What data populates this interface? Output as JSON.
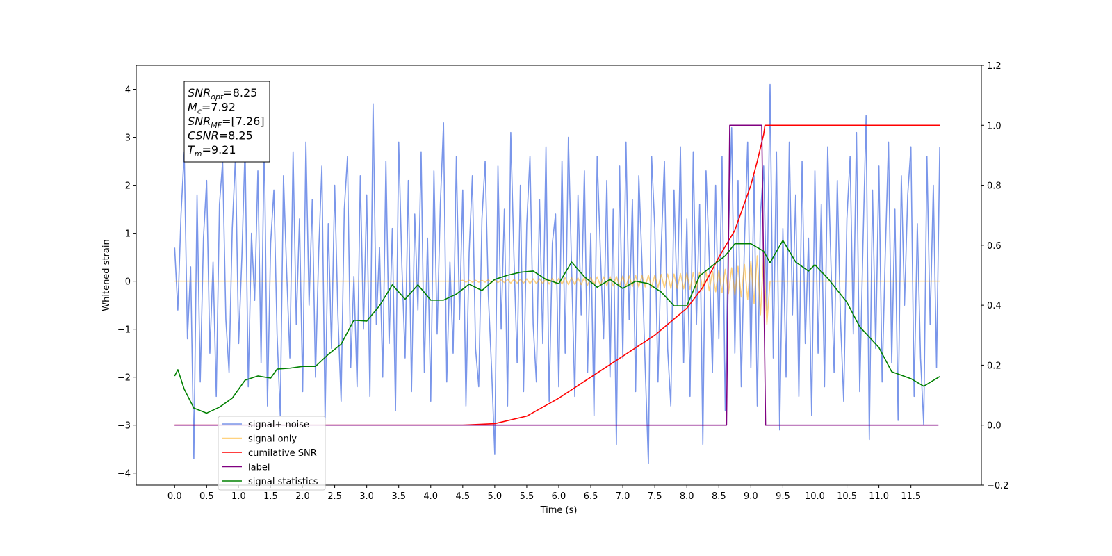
{
  "chart_data": {
    "type": "line",
    "xlabel": "Time (s)",
    "ylabel": "Whitened strain",
    "xlim": [
      -0.6,
      12.6
    ],
    "ylim": [
      -4.25,
      4.5
    ],
    "y2lim": [
      -0.2,
      1.2
    ],
    "xticks": [
      {
        "value": 0,
        "label": "0.0"
      },
      {
        "value": 0.5,
        "label": "0.5"
      },
      {
        "value": 1,
        "label": "1.0"
      },
      {
        "value": 1.5,
        "label": "1.5"
      },
      {
        "value": 2,
        "label": "2.0"
      },
      {
        "value": 2.5,
        "label": "2.5"
      },
      {
        "value": 3,
        "label": "3.0"
      },
      {
        "value": 3.5,
        "label": "3.5"
      },
      {
        "value": 4,
        "label": "4.0"
      },
      {
        "value": 4.5,
        "label": "4.5"
      },
      {
        "value": 5,
        "label": "5.0"
      },
      {
        "value": 5.5,
        "label": "5.5"
      },
      {
        "value": 6,
        "label": "6.0"
      },
      {
        "value": 6.5,
        "label": "6.5"
      },
      {
        "value": 7,
        "label": "7.0"
      },
      {
        "value": 7.5,
        "label": "7.5"
      },
      {
        "value": 8,
        "label": "8.0"
      },
      {
        "value": 8.5,
        "label": "8.5"
      },
      {
        "value": 9,
        "label": "9.0"
      },
      {
        "value": 9.5,
        "label": "9.5"
      },
      {
        "value": 10,
        "label": "10.0"
      },
      {
        "value": 10.5,
        "label": "10.5"
      },
      {
        "value": 11,
        "label": "11.0"
      },
      {
        "value": 11.5,
        "label": "11.5"
      }
    ],
    "yticks": [
      {
        "value": -4,
        "label": "−4"
      },
      {
        "value": -3,
        "label": "−3"
      },
      {
        "value": -2,
        "label": "−2"
      },
      {
        "value": -1,
        "label": "−1"
      },
      0,
      1,
      2,
      3,
      4
    ],
    "y2ticks": [
      {
        "value": -0.2,
        "label": "−0.2"
      },
      {
        "value": 0,
        "label": "0.0"
      },
      {
        "value": 0.2,
        "label": "0.2"
      },
      {
        "value": 0.4,
        "label": "0.4"
      },
      {
        "value": 0.6,
        "label": "0.6"
      },
      {
        "value": 0.8,
        "label": "0.8"
      },
      {
        "value": 1,
        "label": "1.0"
      },
      {
        "value": 1.2,
        "label": "1.2"
      }
    ],
    "annotation": [
      {
        "symbol": "SNR",
        "sub": "opt",
        "text": "=8.25"
      },
      {
        "symbol": "M",
        "sub": "c",
        "text": "=7.92"
      },
      {
        "symbol": "SNR",
        "sub": "MF",
        "text": "=[7.26]"
      },
      {
        "symbol": "CSNR",
        "text": "=8.25"
      },
      {
        "symbol": "T",
        "sub": "m",
        "text": "=9.21"
      }
    ],
    "x": [
      0,
      0.05,
      0.1,
      0.15,
      0.2,
      0.25,
      0.3,
      0.35,
      0.4,
      0.45,
      0.5,
      0.55,
      0.6,
      0.65,
      0.7,
      0.75,
      0.8,
      0.85,
      0.9,
      0.95,
      1,
      1.05,
      1.1,
      1.15,
      1.2,
      1.25,
      1.3,
      1.35,
      1.4,
      1.45,
      1.5,
      1.55,
      1.6,
      1.65,
      1.7,
      1.75,
      1.8,
      1.85,
      1.9,
      1.95,
      2,
      2.05,
      2.1,
      2.15,
      2.2,
      2.25,
      2.3,
      2.35,
      2.4,
      2.45,
      2.5,
      2.55,
      2.6,
      2.65,
      2.7,
      2.75,
      2.8,
      2.85,
      2.9,
      2.95,
      3,
      3.05,
      3.1,
      3.15,
      3.2,
      3.25,
      3.3,
      3.35,
      3.4,
      3.45,
      3.5,
      3.55,
      3.6,
      3.65,
      3.7,
      3.75,
      3.8,
      3.85,
      3.9,
      3.95,
      4,
      4.05,
      4.1,
      4.15,
      4.2,
      4.25,
      4.3,
      4.35,
      4.4,
      4.45,
      4.5,
      4.55,
      4.6,
      4.65,
      4.7,
      4.75,
      4.8,
      4.85,
      4.9,
      4.95,
      5,
      5.05,
      5.1,
      5.15,
      5.2,
      5.25,
      5.3,
      5.35,
      5.4,
      5.45,
      5.5,
      5.55,
      5.6,
      5.65,
      5.7,
      5.75,
      5.8,
      5.85,
      5.9,
      5.95,
      6,
      6.05,
      6.1,
      6.15,
      6.2,
      6.25,
      6.3,
      6.35,
      6.4,
      6.45,
      6.5,
      6.55,
      6.6,
      6.65,
      6.7,
      6.75,
      6.8,
      6.85,
      6.9,
      6.95,
      7,
      7.05,
      7.1,
      7.15,
      7.2,
      7.25,
      7.3,
      7.35,
      7.4,
      7.45,
      7.5,
      7.55,
      7.6,
      7.65,
      7.7,
      7.75,
      7.8,
      7.85,
      7.9,
      7.95,
      8,
      8.05,
      8.1,
      8.15,
      8.2,
      8.25,
      8.3,
      8.35,
      8.4,
      8.45,
      8.5,
      8.55,
      8.6,
      8.65,
      8.7,
      8.75,
      8.8,
      8.85,
      8.9,
      8.95,
      9,
      9.05,
      9.1,
      9.15,
      9.2,
      9.25,
      9.3,
      9.35,
      9.4,
      9.45,
      9.5,
      9.55,
      9.6,
      9.65,
      9.7,
      9.75,
      9.8,
      9.85,
      9.9,
      9.95,
      10,
      10.05,
      10.1,
      10.15,
      10.2,
      10.25,
      10.3,
      10.35,
      10.4,
      10.45,
      10.5,
      10.55,
      10.6,
      10.65,
      10.7,
      10.75,
      10.8,
      10.85,
      10.9,
      10.95,
      11,
      11.05,
      11.1,
      11.15,
      11.2,
      11.25,
      11.3,
      11.35,
      11.4,
      11.45,
      11.5,
      11.55,
      11.6,
      11.65,
      11.7,
      11.75,
      11.8,
      11.85,
      11.9,
      11.95
    ],
    "series": [
      {
        "name": "signal+ noise",
        "color": "#4169e1",
        "alpha": 0.7,
        "values": [
          0.7,
          -0.6,
          1.4,
          2.7,
          -1.2,
          0.3,
          -3.7,
          1.8,
          -2.1,
          0.9,
          2.1,
          -1.5,
          0.4,
          -2.4,
          1.6,
          2.5,
          -0.8,
          -1.9,
          1.1,
          2.6,
          -1.3,
          0.5,
          2.8,
          -2.2,
          1.0,
          -0.4,
          2.3,
          -1.7,
          3.0,
          -2.6,
          0.8,
          1.9,
          -1.1,
          -2.8,
          2.2,
          0.2,
          -1.6,
          2.7,
          -0.9,
          1.3,
          -2.3,
          2.9,
          -0.5,
          1.7,
          -2.0,
          0.6,
          2.4,
          -2.9,
          1.2,
          -1.4,
          2.0,
          -0.7,
          -2.5,
          1.5,
          2.6,
          -1.8,
          0.1,
          -2.2,
          2.2,
          -1.0,
          1.8,
          -2.4,
          3.7,
          -0.9,
          0.7,
          -2.0,
          2.5,
          -1.3,
          1.1,
          -2.7,
          2.9,
          0.3,
          -1.6,
          2.1,
          -2.3,
          1.4,
          -0.6,
          2.7,
          -1.9,
          0.9,
          -2.5,
          2.3,
          -1.1,
          1.6,
          3.3,
          -2.1,
          0.4,
          -1.5,
          2.6,
          -0.8,
          1.9,
          -2.6,
          0.6,
          2.2,
          -1.4,
          -2.2,
          1.3,
          2.5,
          -0.3,
          -1.8,
          -3.6,
          2.4,
          -1.0,
          1.5,
          -2.6,
          3.1,
          0.5,
          -1.7,
          2.0,
          -2.3,
          1.2,
          2.6,
          -0.9,
          -2.1,
          1.7,
          -1.3,
          2.8,
          -2.5,
          0.8,
          1.4,
          -2.2,
          2.5,
          -1.5,
          3.0,
          0.3,
          -2.4,
          1.8,
          -0.7,
          2.3,
          -1.9,
          1.0,
          -2.8,
          2.6,
          0.6,
          -1.2,
          2.1,
          -2.0,
          1.5,
          -3.4,
          2.4,
          -1.6,
          2.9,
          -0.8,
          1.7,
          -2.3,
          2.2,
          0.4,
          -1.8,
          -3.8,
          2.6,
          1.1,
          -2.1,
          0.7,
          2.5,
          -1.4,
          -2.6,
          1.9,
          -0.5,
          2.8,
          -1.7,
          1.3,
          -2.4,
          2.7,
          -0.9,
          1.6,
          -3.4,
          2.3,
          0.5,
          -1.9,
          2.0,
          -1.2,
          2.6,
          -2.7,
          1.0,
          3.2,
          -1.5,
          2.1,
          -2.2,
          0.8,
          2.9,
          -1.8,
          2.2,
          -2.6,
          1.4,
          2.4,
          -0.6,
          4.1,
          -1.6,
          2.7,
          -3.1,
          1.1,
          -2.0,
          2.9,
          -0.7,
          1.8,
          -2.4,
          2.5,
          -1.3,
          0.9,
          -2.8,
          2.3,
          -1.5,
          1.6,
          -2.2,
          2.8,
          0.4,
          -1.9,
          2.1,
          -0.8,
          -2.5,
          1.3,
          2.6,
          -1.1,
          3.1,
          -2.3,
          0.7,
          3.45,
          -3.3,
          1.9,
          -1.4,
          2.4,
          -2.1,
          0.6,
          2.9,
          -1.7,
          1.5,
          -2.9,
          2.2,
          -0.5,
          1.8,
          2.8,
          -2.4,
          1.2,
          -1.6,
          -3.0,
          2.6,
          -0.9,
          2.0,
          -1.8,
          2.8
        ]
      },
      {
        "name": "signal only",
        "color": "#ffa500",
        "alpha": 0.5,
        "values": [
          0,
          0,
          0,
          0,
          0,
          0,
          0,
          0,
          0,
          0,
          0,
          0,
          0,
          0,
          0,
          0,
          0,
          0,
          0,
          0,
          0,
          0,
          0,
          0,
          0,
          0,
          0,
          0,
          0,
          0,
          0,
          0,
          0,
          0,
          0,
          0,
          0,
          0,
          0,
          0,
          0,
          0,
          0,
          0,
          0,
          0,
          0,
          0,
          0,
          0,
          0,
          0,
          0,
          0,
          0,
          0,
          0,
          0,
          0,
          0,
          0,
          0,
          0,
          0,
          0,
          0,
          0,
          0,
          0,
          0,
          0,
          0,
          0,
          0,
          0,
          0,
          0,
          0,
          0,
          0,
          0,
          0,
          0,
          0,
          0,
          0,
          0,
          0,
          0,
          0,
          0.02,
          -0.02,
          0.02,
          -0.02,
          0.02,
          -0.02,
          0.02,
          -0.02,
          0.03,
          -0.03,
          0.03,
          -0.03,
          0.03,
          -0.03,
          0.04,
          -0.04,
          0.04,
          -0.04,
          0.04,
          -0.04,
          0.05,
          -0.05,
          0.05,
          -0.05,
          0.05,
          -0.05,
          0.06,
          -0.06,
          0.06,
          -0.06,
          0.06,
          -0.06,
          0.07,
          -0.07,
          0.07,
          -0.07,
          0.07,
          -0.07,
          0.08,
          -0.08,
          0.08,
          -0.08,
          0.09,
          -0.09,
          0.09,
          -0.09,
          0.1,
          -0.1,
          0.1,
          -0.1,
          0.11,
          -0.11,
          0.11,
          -0.11,
          0.12,
          -0.12,
          0.12,
          -0.12,
          0.13,
          -0.13,
          0.13,
          -0.13,
          0.14,
          -0.14,
          0.15,
          -0.15,
          0.15,
          -0.15,
          0.16,
          -0.16,
          0.17,
          -0.17,
          0.18,
          -0.18,
          0.19,
          -0.19,
          0.2,
          -0.2,
          0.21,
          -0.22,
          0.23,
          -0.24,
          0.25,
          -0.26,
          0.28,
          -0.29,
          0.31,
          -0.33,
          0.35,
          -0.38,
          0.42,
          -0.47,
          0.53,
          -0.7,
          0.55,
          -0.9,
          0,
          0,
          0,
          0,
          0,
          0,
          0,
          0,
          0,
          0,
          0,
          0,
          0,
          0,
          0,
          0,
          0,
          0,
          0,
          0,
          0,
          0,
          0,
          0,
          0,
          0,
          0,
          0,
          0,
          0,
          0,
          0,
          0,
          0,
          0,
          0,
          0,
          0,
          0,
          0,
          0,
          0,
          0,
          0,
          0,
          0,
          0,
          0,
          0,
          0,
          0,
          0,
          0,
          0
        ]
      },
      {
        "name": "cumilative SNR",
        "color": "#ff0000",
        "axis": "y2",
        "x": [
          0,
          4.5,
          5,
          5.5,
          6,
          6.5,
          7,
          7.5,
          8,
          8.25,
          8.5,
          8.75,
          9,
          9.1,
          9.2,
          9.22,
          11.95
        ],
        "values": [
          0,
          0,
          0.005,
          0.03,
          0.09,
          0.16,
          0.23,
          0.3,
          0.39,
          0.46,
          0.56,
          0.65,
          0.8,
          0.88,
          0.97,
          1,
          1
        ]
      },
      {
        "name": "label",
        "color": "#800080",
        "axis": "y2",
        "x": [
          0,
          8.62,
          8.67,
          9.17,
          9.23,
          11.93
        ],
        "values": [
          0,
          0,
          1,
          1,
          0,
          0
        ]
      },
      {
        "name": "signal statistics",
        "color": "#008000",
        "axis": "y2",
        "x": [
          0,
          0.05,
          0.15,
          0.3,
          0.5,
          0.7,
          0.9,
          1.1,
          1.3,
          1.5,
          1.6,
          1.8,
          2,
          2.2,
          2.4,
          2.6,
          2.8,
          3,
          3.2,
          3.4,
          3.6,
          3.8,
          4,
          4.2,
          4.4,
          4.6,
          4.8,
          5,
          5.2,
          5.4,
          5.6,
          5.8,
          6,
          6.2,
          6.4,
          6.6,
          6.8,
          7,
          7.2,
          7.4,
          7.6,
          7.8,
          8,
          8.2,
          8.4,
          8.6,
          8.75,
          9,
          9.2,
          9.3,
          9.5,
          9.7,
          9.9,
          10,
          10.2,
          10.5,
          10.7,
          11,
          11.2,
          11.5,
          11.7,
          11.95
        ],
        "values": [
          0.164,
          0.185,
          0.12,
          0.057,
          0.04,
          0.06,
          0.09,
          0.15,
          0.164,
          0.157,
          0.187,
          0.19,
          0.196,
          0.196,
          0.236,
          0.27,
          0.35,
          0.347,
          0.398,
          0.468,
          0.42,
          0.468,
          0.417,
          0.417,
          0.437,
          0.47,
          0.449,
          0.486,
          0.5,
          0.51,
          0.514,
          0.486,
          0.472,
          0.544,
          0.495,
          0.46,
          0.486,
          0.456,
          0.48,
          0.472,
          0.444,
          0.398,
          0.398,
          0.498,
          0.532,
          0.565,
          0.605,
          0.605,
          0.58,
          0.542,
          0.616,
          0.544,
          0.514,
          0.535,
          0.49,
          0.41,
          0.328,
          0.259,
          0.178,
          0.155,
          0.13,
          0.162
        ]
      }
    ]
  }
}
